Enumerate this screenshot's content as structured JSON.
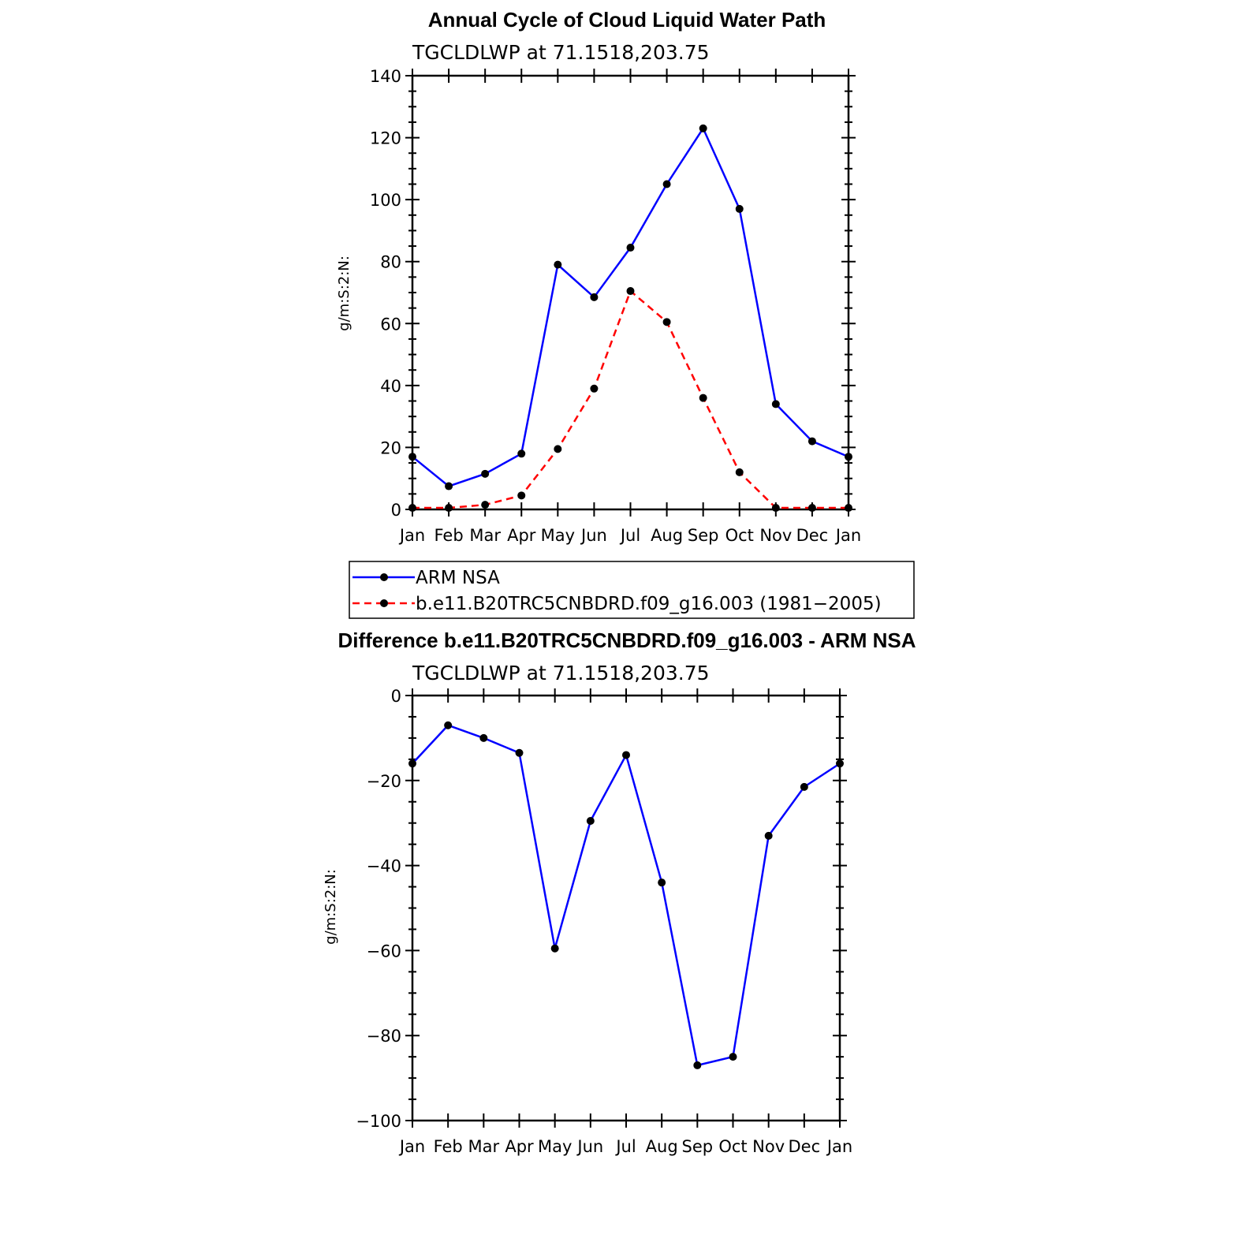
{
  "colors": {
    "arm": "#0000ff",
    "model": "#ff0000",
    "diff": "#0000ff",
    "marker": "#000000"
  },
  "chart_data": [
    {
      "type": "line",
      "title": "Annual Cycle of Cloud Liquid Water Path",
      "subtitle": "TGCLDLWP  at  71.1518,203.75",
      "xlabel": "",
      "ylabel": "g/m:S:2:N:",
      "categories": [
        "Jan",
        "Feb",
        "Mar",
        "Apr",
        "May",
        "Jun",
        "Jul",
        "Aug",
        "Sep",
        "Oct",
        "Nov",
        "Dec",
        "Jan"
      ],
      "ylim": [
        0,
        140
      ],
      "yticks": [
        0,
        20,
        40,
        60,
        80,
        100,
        120,
        140
      ],
      "series": [
        {
          "name": "ARM  NSA",
          "style": "solid",
          "values": [
            17,
            7.5,
            11.5,
            18,
            79,
            68.5,
            84.5,
            105,
            123,
            97,
            34,
            22,
            17
          ]
        },
        {
          "name": "b.e11.B20TRC5CNBDRD.f09_g16.003 (1981−2005)",
          "style": "dashed",
          "values": [
            0.5,
            0.5,
            1.5,
            4.5,
            19.5,
            39,
            70.5,
            60.5,
            36,
            12,
            0.5,
            0.5,
            0.5
          ]
        }
      ],
      "legend": "below"
    },
    {
      "type": "line",
      "title": "Difference b.e11.B20TRC5CNBDRD.f09_g16.003 - ARM NSA",
      "subtitle": "TGCLDLWP  at  71.1518,203.75",
      "xlabel": "",
      "ylabel": "g/m:S:2:N:",
      "categories": [
        "Jan",
        "Feb",
        "Mar",
        "Apr",
        "May",
        "Jun",
        "Jul",
        "Aug",
        "Sep",
        "Oct",
        "Nov",
        "Dec",
        "Jan"
      ],
      "ylim": [
        -100,
        0
      ],
      "yticks": [
        0,
        -20,
        -40,
        -60,
        -80,
        -100
      ],
      "series": [
        {
          "name": "Difference",
          "style": "solid",
          "values": [
            -16,
            -7,
            -10,
            -13.5,
            -59.5,
            -29.5,
            -14,
            -44,
            -87,
            -85,
            -33,
            -21.5,
            -16
          ]
        }
      ]
    }
  ]
}
